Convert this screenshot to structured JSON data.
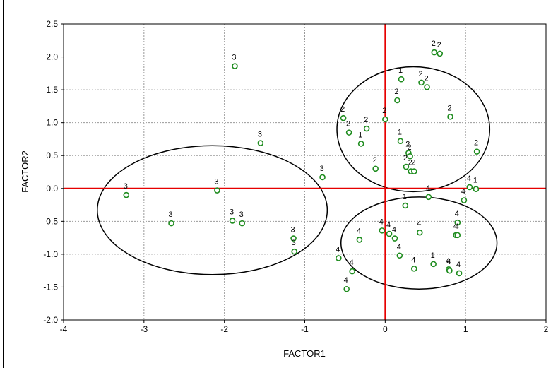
{
  "chart_data": {
    "type": "scatter",
    "title": "",
    "xlabel": "FACTOR1",
    "ylabel": "FACTOR2",
    "xlim": [
      -4,
      2
    ],
    "ylim": [
      -2.0,
      2.5
    ],
    "xticks": [
      "-4",
      "-3",
      "-2",
      "-1",
      "0",
      "1",
      "2"
    ],
    "yticks": [
      "-2.0",
      "-1.5",
      "-1.0",
      "-0.5",
      "0.0",
      "0.5",
      "1.0",
      "1.5",
      "2.0",
      "2.5"
    ],
    "grid": true,
    "colors": {
      "marker": "#1e8c1e",
      "axis_lines": "#e60000",
      "ellipse": "#000000",
      "grid": "#9a9a9a"
    },
    "reference_lines": [
      {
        "axis": "x",
        "value": 0
      },
      {
        "axis": "y",
        "value": 0
      }
    ],
    "ellipses": [
      {
        "cx": 0.35,
        "cy": 0.9,
        "rx": 0.95,
        "ry": 0.95
      },
      {
        "cx": 0.42,
        "cy": -0.83,
        "rx": 0.97,
        "ry": 0.7
      },
      {
        "cx": -2.15,
        "cy": -0.33,
        "rx": 1.43,
        "ry": 0.98
      }
    ],
    "points": [
      {
        "x": 0.61,
        "y": 2.07,
        "label": "2"
      },
      {
        "x": 0.68,
        "y": 2.05,
        "label": "2"
      },
      {
        "x": -1.87,
        "y": 1.86,
        "label": "3"
      },
      {
        "x": 0.2,
        "y": 1.66,
        "label": "1"
      },
      {
        "x": 0.45,
        "y": 1.61,
        "label": "2"
      },
      {
        "x": 0.52,
        "y": 1.54,
        "label": "2"
      },
      {
        "x": 0.15,
        "y": 1.34,
        "label": "2"
      },
      {
        "x": -0.52,
        "y": 1.07,
        "label": "2"
      },
      {
        "x": 0.81,
        "y": 1.09,
        "label": "2"
      },
      {
        "x": 0.0,
        "y": 1.05,
        "label": "2"
      },
      {
        "x": -0.23,
        "y": 0.91,
        "label": "2"
      },
      {
        "x": -0.45,
        "y": 0.85,
        "label": "2"
      },
      {
        "x": -0.3,
        "y": 0.68,
        "label": "1"
      },
      {
        "x": -1.55,
        "y": 0.69,
        "label": "3"
      },
      {
        "x": 0.19,
        "y": 0.72,
        "label": "1"
      },
      {
        "x": 0.29,
        "y": 0.54,
        "label": "2"
      },
      {
        "x": 1.14,
        "y": 0.56,
        "label": "2"
      },
      {
        "x": 0.31,
        "y": 0.49,
        "label": "2"
      },
      {
        "x": 0.26,
        "y": 0.33,
        "label": "2"
      },
      {
        "x": 0.32,
        "y": 0.26,
        "label": "2"
      },
      {
        "x": -0.12,
        "y": 0.3,
        "label": "2"
      },
      {
        "x": 0.36,
        "y": 0.26,
        "label": "2"
      },
      {
        "x": -0.78,
        "y": 0.17,
        "label": "3"
      },
      {
        "x": -3.22,
        "y": -0.1,
        "label": "3"
      },
      {
        "x": -2.09,
        "y": -0.03,
        "label": "3"
      },
      {
        "x": 1.05,
        "y": 0.02,
        "label": "4"
      },
      {
        "x": 1.13,
        "y": -0.01,
        "label": "1"
      },
      {
        "x": 0.54,
        "y": -0.13,
        "label": "4"
      },
      {
        "x": 0.98,
        "y": -0.18,
        "label": "4"
      },
      {
        "x": 0.25,
        "y": -0.26,
        "label": "1"
      },
      {
        "x": -2.66,
        "y": -0.53,
        "label": "3"
      },
      {
        "x": -1.9,
        "y": -0.49,
        "label": "3"
      },
      {
        "x": -1.78,
        "y": -0.53,
        "label": "3"
      },
      {
        "x": 0.9,
        "y": -0.52,
        "label": "4"
      },
      {
        "x": -1.14,
        "y": -0.76,
        "label": "3"
      },
      {
        "x": -1.13,
        "y": -0.96,
        "label": "3"
      },
      {
        "x": -0.04,
        "y": -0.64,
        "label": "4"
      },
      {
        "x": 0.05,
        "y": -0.69,
        "label": "4"
      },
      {
        "x": 0.12,
        "y": -0.76,
        "label": "4"
      },
      {
        "x": 0.43,
        "y": -0.67,
        "label": "4"
      },
      {
        "x": 0.88,
        "y": -0.71,
        "label": "4"
      },
      {
        "x": 0.9,
        "y": -0.71,
        "label": "4"
      },
      {
        "x": -0.32,
        "y": -0.78,
        "label": "4"
      },
      {
        "x": 0.18,
        "y": -1.02,
        "label": "4"
      },
      {
        "x": -0.58,
        "y": -1.06,
        "label": "4"
      },
      {
        "x": 0.6,
        "y": -1.15,
        "label": "1"
      },
      {
        "x": 0.79,
        "y": -1.23,
        "label": "4"
      },
      {
        "x": 0.8,
        "y": -1.25,
        "label": "4"
      },
      {
        "x": 0.36,
        "y": -1.22,
        "label": "4"
      },
      {
        "x": 0.92,
        "y": -1.29,
        "label": "4"
      },
      {
        "x": -0.41,
        "y": -1.26,
        "label": "4"
      },
      {
        "x": -0.48,
        "y": -1.53,
        "label": "4"
      }
    ]
  }
}
